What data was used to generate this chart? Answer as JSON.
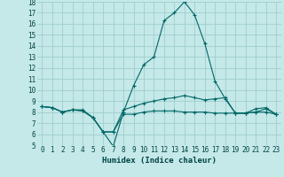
{
  "title": "",
  "xlabel": "Humidex (Indice chaleur)",
  "background_color": "#c5e8e8",
  "grid_color": "#9fcece",
  "line_color": "#006868",
  "xlim": [
    -0.5,
    23.5
  ],
  "ylim": [
    5,
    18
  ],
  "yticks": [
    5,
    6,
    7,
    8,
    9,
    10,
    11,
    12,
    13,
    14,
    15,
    16,
    17,
    18
  ],
  "xticks": [
    0,
    1,
    2,
    3,
    4,
    5,
    6,
    7,
    8,
    9,
    10,
    11,
    12,
    13,
    14,
    15,
    16,
    17,
    18,
    19,
    20,
    21,
    22,
    23
  ],
  "series1_x": [
    0,
    1,
    2,
    3,
    4,
    5,
    6,
    7,
    8,
    9,
    10,
    11,
    12,
    13,
    14,
    15,
    16,
    17,
    18,
    19,
    20,
    21,
    22,
    23
  ],
  "series1_y": [
    8.5,
    8.4,
    8.0,
    8.2,
    8.1,
    7.5,
    6.2,
    6.2,
    7.8,
    7.8,
    8.0,
    8.1,
    8.1,
    8.1,
    8.0,
    8.0,
    8.0,
    7.9,
    7.9,
    7.9,
    7.9,
    8.0,
    8.0,
    7.8
  ],
  "series2_x": [
    0,
    1,
    2,
    3,
    4,
    5,
    6,
    7,
    8,
    9,
    10,
    11,
    12,
    13,
    14,
    15,
    16,
    17,
    18,
    19,
    20,
    21,
    22,
    23
  ],
  "series2_y": [
    8.5,
    8.4,
    8.0,
    8.2,
    8.1,
    7.5,
    6.2,
    4.9,
    8.0,
    10.4,
    12.3,
    13.0,
    16.3,
    17.0,
    18.0,
    16.8,
    14.2,
    10.8,
    9.2,
    7.9,
    7.9,
    8.3,
    8.4,
    7.8
  ],
  "series3_x": [
    0,
    1,
    2,
    3,
    4,
    5,
    6,
    7,
    8,
    9,
    10,
    11,
    12,
    13,
    14,
    15,
    16,
    17,
    18,
    19,
    20,
    21,
    22,
    23
  ],
  "series3_y": [
    8.5,
    8.4,
    8.0,
    8.2,
    8.2,
    7.5,
    6.2,
    6.2,
    8.2,
    8.5,
    8.8,
    9.0,
    9.2,
    9.3,
    9.5,
    9.3,
    9.1,
    9.2,
    9.3,
    7.9,
    7.9,
    8.0,
    8.3,
    7.8
  ],
  "xlabel_fontsize": 6.5,
  "tick_fontsize": 5.5
}
